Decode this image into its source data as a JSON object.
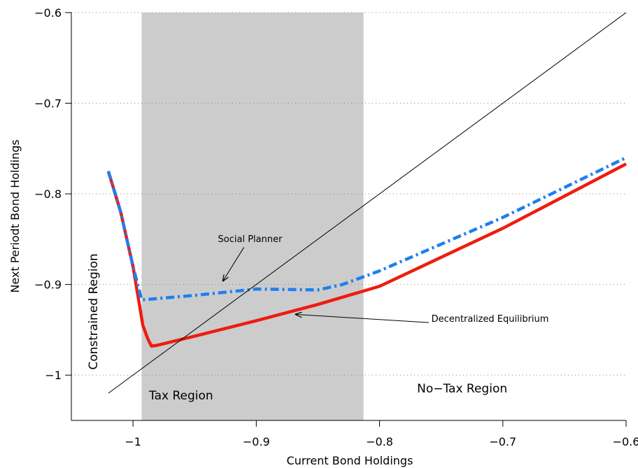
{
  "chart_data": {
    "type": "line",
    "title": "",
    "xlabel": "Current Bond Holdings",
    "ylabel": "Next Periodt Bond Holdings",
    "xlim": [
      -1.05,
      -0.6
    ],
    "ylim": [
      -1.05,
      -0.6
    ],
    "xticks": [
      -1,
      -0.9,
      -0.8,
      -0.7,
      -0.6
    ],
    "xtick_labels": [
      "−1",
      "−0.9",
      "−0.8",
      "−0.7",
      "−0.6"
    ],
    "yticks": [
      -1,
      -0.9,
      -0.8,
      -0.7,
      -0.6
    ],
    "ytick_labels": [
      "−1",
      "−0.9",
      "−0.8",
      "−0.7",
      "−0.6"
    ],
    "grid": "horizontal dotted",
    "shaded_region": {
      "x": [
        -0.993,
        -0.813
      ],
      "color": "#cccccc"
    },
    "series": [
      {
        "name": "Decentralized Equilibrium",
        "color": "#ee1c0f",
        "style": "solid",
        "x": [
          -1.02,
          -1.01,
          -1.0,
          -0.992,
          -0.988,
          -0.985,
          -0.98,
          -0.95,
          -0.9,
          -0.85,
          -0.8,
          -0.7,
          -0.6
        ],
        "y": [
          -0.775,
          -0.82,
          -0.88,
          -0.945,
          -0.96,
          -0.968,
          -0.967,
          -0.957,
          -0.94,
          -0.922,
          -0.902,
          -0.838,
          -0.767
        ]
      },
      {
        "name": "Social Planner",
        "color": "#1e7ff0",
        "style": "dashdot",
        "x": [
          -1.02,
          -1.01,
          -1.0,
          -0.993,
          -0.95,
          -0.9,
          -0.85,
          -0.83,
          -0.8,
          -0.7,
          -0.6
        ],
        "y": [
          -0.775,
          -0.82,
          -0.88,
          -0.917,
          -0.912,
          -0.905,
          -0.906,
          -0.9,
          -0.885,
          -0.826,
          -0.76
        ]
      },
      {
        "name": "",
        "color": "#000000",
        "style": "thin",
        "x": [
          -1.02,
          -0.6
        ],
        "y": [
          -1.02,
          -0.6
        ]
      }
    ],
    "annotations": [
      {
        "text": "Social Planner",
        "x": -0.905,
        "y": -0.853
      },
      {
        "text": "Decentralized Equilibrium",
        "x": -0.758,
        "y": -0.941
      },
      {
        "text": "Constrained Region",
        "x": -1.029,
        "y": -0.93
      },
      {
        "text": "Tax Region",
        "x": -0.961,
        "y": -1.027
      },
      {
        "text": "No−Tax Region",
        "x": -0.733,
        "y": -1.019
      }
    ],
    "arrows": [
      {
        "from": [
          -0.91,
          -0.859
        ],
        "to": [
          -0.927,
          -0.896
        ]
      },
      {
        "from": [
          -0.76,
          -0.942
        ],
        "to": [
          -0.868,
          -0.933
        ]
      }
    ]
  }
}
